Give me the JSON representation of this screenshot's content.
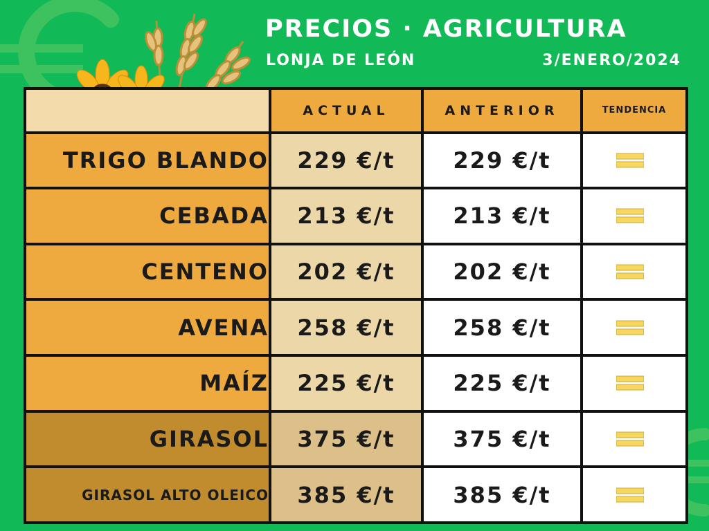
{
  "header": {
    "title": "PRECIOS · AGRICULTURA",
    "subtitle": "LONJA DE LEÓN",
    "date": "3/ENERO/2024"
  },
  "table": {
    "columns": [
      "",
      "ACTUAL",
      "ANTERIOR",
      "TENDENCIA"
    ],
    "rows": [
      {
        "product": "TRIGO BLANDO",
        "actual": "229 €/t",
        "anterior": "229 €/t",
        "tendencia": "equal-icon"
      },
      {
        "product": "CEBADA",
        "actual": "213 €/t",
        "anterior": "213 €/t",
        "tendencia": "equal-icon"
      },
      {
        "product": "CENTENO",
        "actual": "202 €/t",
        "anterior": "202 €/t",
        "tendencia": "equal-icon"
      },
      {
        "product": "AVENA",
        "actual": "258 €/t",
        "anterior": "258 €/t",
        "tendencia": "equal-icon"
      },
      {
        "product": "MAÍZ",
        "actual": "225 €/t",
        "anterior": "225 €/t",
        "tendencia": "equal-icon"
      },
      {
        "product": "GIRASOL",
        "actual": "375 €/t",
        "anterior": "375 €/t",
        "tendencia": "equal-icon"
      },
      {
        "product": "GIRASOL ALTO OLEICO",
        "actual": "385 €/t",
        "anterior": "385 €/t",
        "tendencia": "equal-icon"
      }
    ]
  },
  "decoration": {
    "background_icon": "euro-icon",
    "illustration": [
      "sunflower-icon",
      "wheat-icon"
    ]
  },
  "colors": {
    "background": "#12b957",
    "header_orange": "#eeaa3e",
    "oilseed_brown": "#c08c2e",
    "actual_beige": "#ecd7a8",
    "trend_yellow": "#f7d760"
  }
}
